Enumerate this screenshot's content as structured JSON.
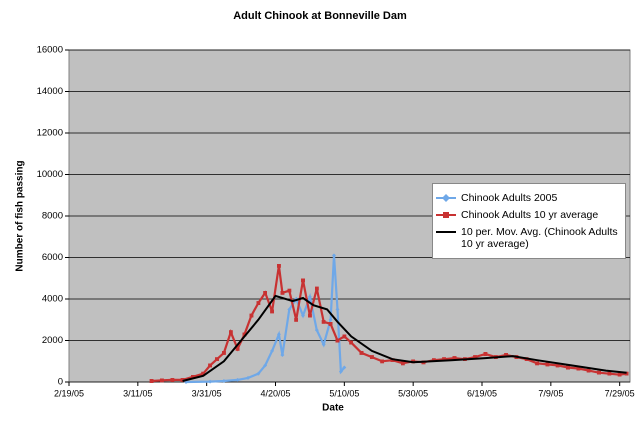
{
  "chart_data": {
    "type": "line",
    "title": "Adult Chinook at Bonneville Dam",
    "x_label": "Date",
    "y_label": "Number of fish passing",
    "xlim": [
      "2005-02-19",
      "2005-08-01"
    ],
    "xticks": [
      {
        "value": "2005-02-19",
        "label": "2/19/05"
      },
      {
        "value": "2005-03-11",
        "label": "3/11/05"
      },
      {
        "value": "2005-03-31",
        "label": "3/31/05"
      },
      {
        "value": "2005-04-20",
        "label": "4/20/05"
      },
      {
        "value": "2005-05-10",
        "label": "5/10/05"
      },
      {
        "value": "2005-05-30",
        "label": "5/30/05"
      },
      {
        "value": "2005-06-19",
        "label": "6/19/05"
      },
      {
        "value": "2005-07-09",
        "label": "7/9/05"
      },
      {
        "value": "2005-07-29",
        "label": "7/29/05"
      }
    ],
    "ylim": [
      0,
      16000
    ],
    "yticks": [
      0,
      2000,
      4000,
      6000,
      8000,
      10000,
      12000,
      14000,
      16000
    ],
    "grid": true,
    "series": [
      {
        "name": "Chinook Adults 2005",
        "color": "#6fa8e8",
        "marker": "diamond",
        "x": [
          "2005-03-25",
          "2005-04-01",
          "2005-04-05",
          "2005-04-09",
          "2005-04-12",
          "2005-04-15",
          "2005-04-17",
          "2005-04-19",
          "2005-04-21",
          "2005-04-22",
          "2005-04-24",
          "2005-04-26",
          "2005-04-28",
          "2005-04-30",
          "2005-05-02",
          "2005-05-04",
          "2005-05-06",
          "2005-05-07",
          "2005-05-08",
          "2005-05-09",
          "2005-05-10"
        ],
        "values": [
          0,
          20,
          50,
          100,
          200,
          400,
          800,
          1500,
          2300,
          1300,
          3500,
          4000,
          3200,
          4100,
          2500,
          1800,
          3000,
          6100,
          3500,
          500,
          700
        ]
      },
      {
        "name": "Chinook Adults 10 yr average",
        "color": "#c83232",
        "marker": "square",
        "x": [
          "2005-03-15",
          "2005-03-18",
          "2005-03-21",
          "2005-03-24",
          "2005-03-27",
          "2005-03-30",
          "2005-04-01",
          "2005-04-03",
          "2005-04-05",
          "2005-04-07",
          "2005-04-09",
          "2005-04-11",
          "2005-04-13",
          "2005-04-15",
          "2005-04-17",
          "2005-04-19",
          "2005-04-21",
          "2005-04-22",
          "2005-04-24",
          "2005-04-26",
          "2005-04-28",
          "2005-04-30",
          "2005-05-02",
          "2005-05-04",
          "2005-05-06",
          "2005-05-08",
          "2005-05-10",
          "2005-05-12",
          "2005-05-15",
          "2005-05-18",
          "2005-05-21",
          "2005-05-24",
          "2005-05-27",
          "2005-05-30",
          "2005-06-02",
          "2005-06-05",
          "2005-06-08",
          "2005-06-11",
          "2005-06-14",
          "2005-06-17",
          "2005-06-20",
          "2005-06-23",
          "2005-06-26",
          "2005-06-29",
          "2005-07-02",
          "2005-07-05",
          "2005-07-08",
          "2005-07-11",
          "2005-07-14",
          "2005-07-17",
          "2005-07-20",
          "2005-07-23",
          "2005-07-26",
          "2005-07-29",
          "2005-07-31"
        ],
        "values": [
          50,
          80,
          100,
          100,
          250,
          400,
          800,
          1100,
          1400,
          2400,
          1600,
          2300,
          3200,
          3800,
          4300,
          3400,
          5600,
          4300,
          4400,
          3000,
          4900,
          3200,
          4500,
          2900,
          2800,
          2000,
          2200,
          1900,
          1400,
          1200,
          1000,
          1050,
          900,
          1000,
          950,
          1050,
          1100,
          1150,
          1100,
          1200,
          1350,
          1200,
          1300,
          1200,
          1100,
          900,
          850,
          800,
          700,
          650,
          550,
          450,
          400,
          350,
          400
        ]
      },
      {
        "name": "10 per. Mov. Avg. (Chinook Adults 10 yr average)",
        "color": "#000000",
        "marker": "none",
        "x": [
          "2005-03-24",
          "2005-03-30",
          "2005-04-05",
          "2005-04-10",
          "2005-04-15",
          "2005-04-20",
          "2005-04-25",
          "2005-04-28",
          "2005-05-01",
          "2005-05-05",
          "2005-05-08",
          "2005-05-12",
          "2005-05-18",
          "2005-05-24",
          "2005-05-30",
          "2005-06-10",
          "2005-06-20",
          "2005-06-28",
          "2005-07-05",
          "2005-07-15",
          "2005-07-25",
          "2005-07-31"
        ],
        "values": [
          50,
          300,
          1000,
          2000,
          3000,
          4150,
          3900,
          4050,
          3700,
          3500,
          2900,
          2200,
          1500,
          1100,
          950,
          1050,
          1150,
          1250,
          1050,
          800,
          550,
          450
        ]
      }
    ]
  }
}
